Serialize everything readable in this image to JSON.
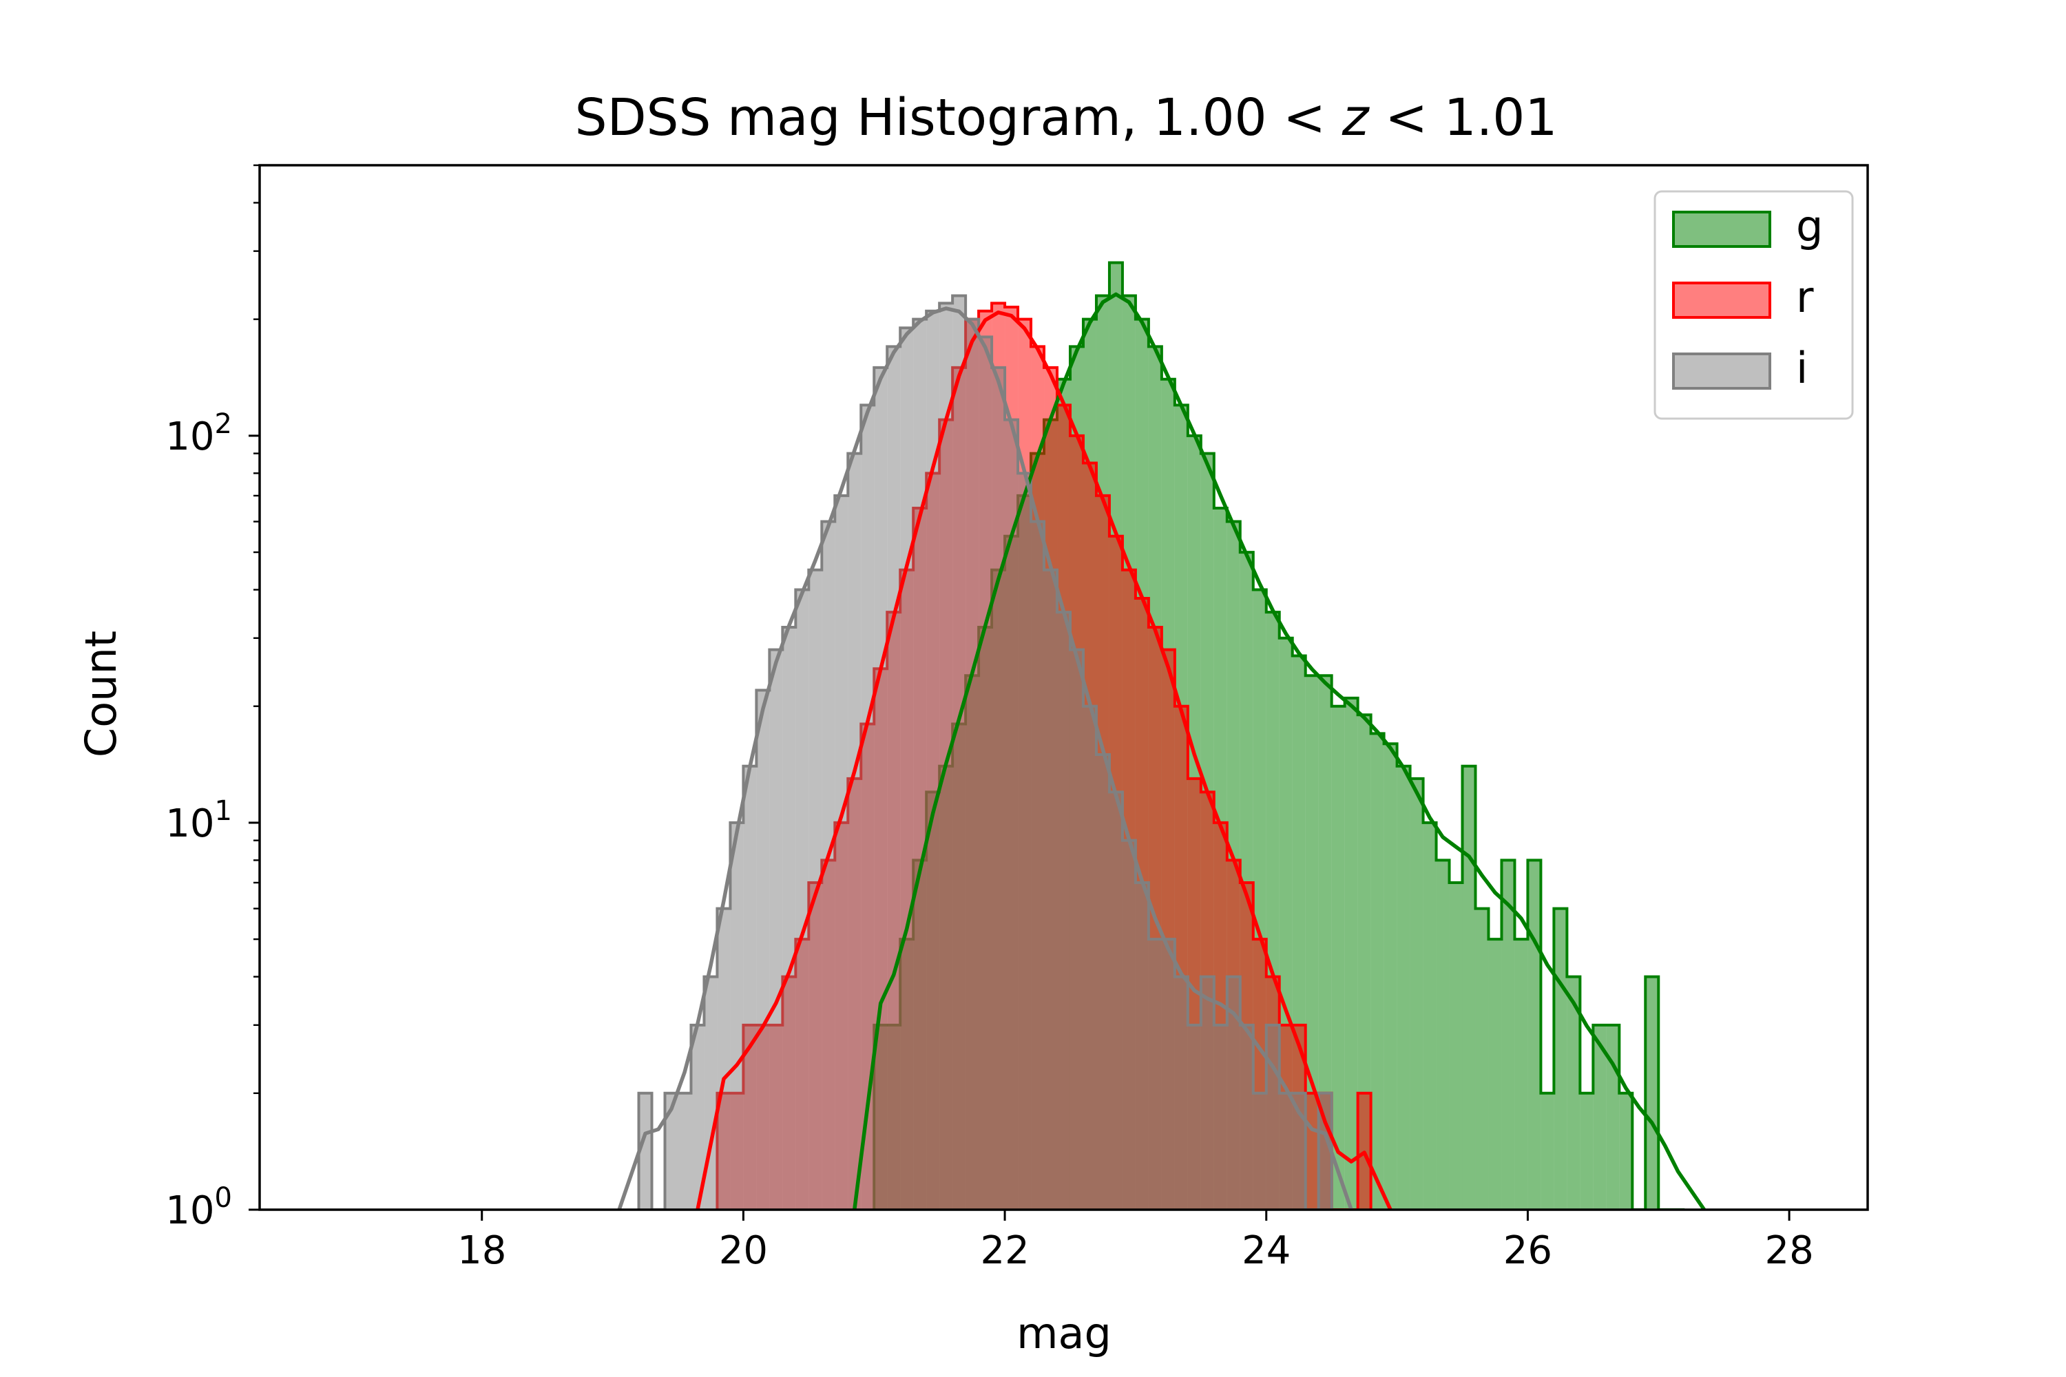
{
  "chart_data": {
    "type": "histogram",
    "title": "SDSS mag Histogram, 1.00 < z < 1.01",
    "title_parts": {
      "prefix": "SDSS mag Histogram, 1.00",
      "lt1": "<",
      "var": "z",
      "lt2": "<",
      "suffix": "1.01"
    },
    "xlabel": "mag",
    "ylabel": "Count",
    "xlim": [
      16.3,
      28.6
    ],
    "ylim": [
      1,
      500
    ],
    "yscale": "log",
    "grid": false,
    "legend_position": "top-right",
    "bin_width": 0.1,
    "xticks": [
      18,
      20,
      22,
      24,
      26,
      28
    ],
    "xtick_labels": [
      "18",
      "20",
      "22",
      "24",
      "26",
      "28"
    ],
    "yticks": [
      1,
      10,
      100
    ],
    "ytick_labels": [
      {
        "base": "10",
        "exp": "0"
      },
      {
        "base": "10",
        "exp": "1"
      },
      {
        "base": "10",
        "exp": "2"
      }
    ],
    "series": [
      {
        "name": "g",
        "color": "#008000",
        "fill": "rgba(0,128,0,0.5)",
        "bin_start": 21.0,
        "counts": [
          3,
          3,
          5,
          8,
          12,
          14,
          18,
          24,
          32,
          45,
          55,
          70,
          90,
          110,
          140,
          170,
          200,
          230,
          280,
          230,
          200,
          170,
          140,
          120,
          100,
          90,
          65,
          60,
          50,
          40,
          35,
          30,
          27,
          24,
          24,
          20,
          21,
          19,
          17,
          16,
          14,
          13,
          10,
          8,
          7,
          14,
          6,
          5,
          8,
          5,
          8,
          2,
          6,
          4,
          2,
          3,
          3,
          2,
          1,
          4,
          1,
          1
        ]
      },
      {
        "name": "r",
        "color": "#ff0000",
        "fill": "rgba(255,0,0,0.5)",
        "bin_start": 19.8,
        "counts": [
          2,
          2,
          3,
          3,
          3,
          4,
          5,
          7,
          8,
          10,
          13,
          18,
          25,
          35,
          45,
          65,
          80,
          110,
          150,
          200,
          210,
          220,
          215,
          200,
          170,
          150,
          120,
          100,
          85,
          70,
          55,
          45,
          38,
          32,
          28,
          20,
          13,
          12,
          10,
          8,
          7,
          5,
          4,
          3,
          3,
          2,
          2,
          1,
          1,
          2
        ]
      },
      {
        "name": "i",
        "color": "#808080",
        "fill": "rgba(128,128,128,0.5)",
        "bin_start": 19.2,
        "counts": [
          2,
          1,
          2,
          2,
          3,
          4,
          6,
          10,
          14,
          22,
          28,
          32,
          40,
          45,
          60,
          70,
          90,
          120,
          150,
          170,
          190,
          200,
          210,
          220,
          230,
          200,
          180,
          150,
          110,
          80,
          60,
          45,
          35,
          28,
          20,
          15,
          12,
          9,
          7,
          5,
          5,
          4,
          3,
          4,
          3,
          4,
          3,
          2,
          3,
          2,
          2,
          1,
          2
        ]
      }
    ]
  }
}
